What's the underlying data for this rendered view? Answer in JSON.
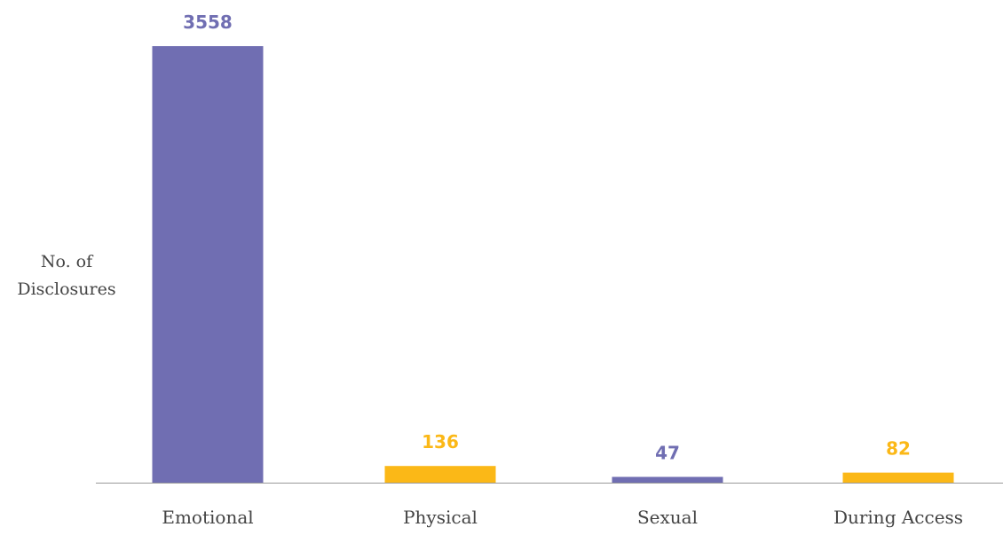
{
  "chart_data": {
    "type": "bar",
    "title": "",
    "xlabel": "",
    "ylabel_lines": [
      "No. of",
      "Disclosures"
    ],
    "categories": [
      "Emotional",
      "Physical",
      "Sexual",
      "During Access"
    ],
    "values": [
      3558,
      136,
      47,
      82
    ],
    "value_labels": [
      "3558",
      "136",
      "47",
      "82"
    ],
    "bar_colors": [
      "#706eb2",
      "#fbb817",
      "#706eb2",
      "#fbb817"
    ],
    "ylim": [
      0,
      3558
    ],
    "grid": false,
    "axis_color": "#999999",
    "text_color": "#444444"
  }
}
